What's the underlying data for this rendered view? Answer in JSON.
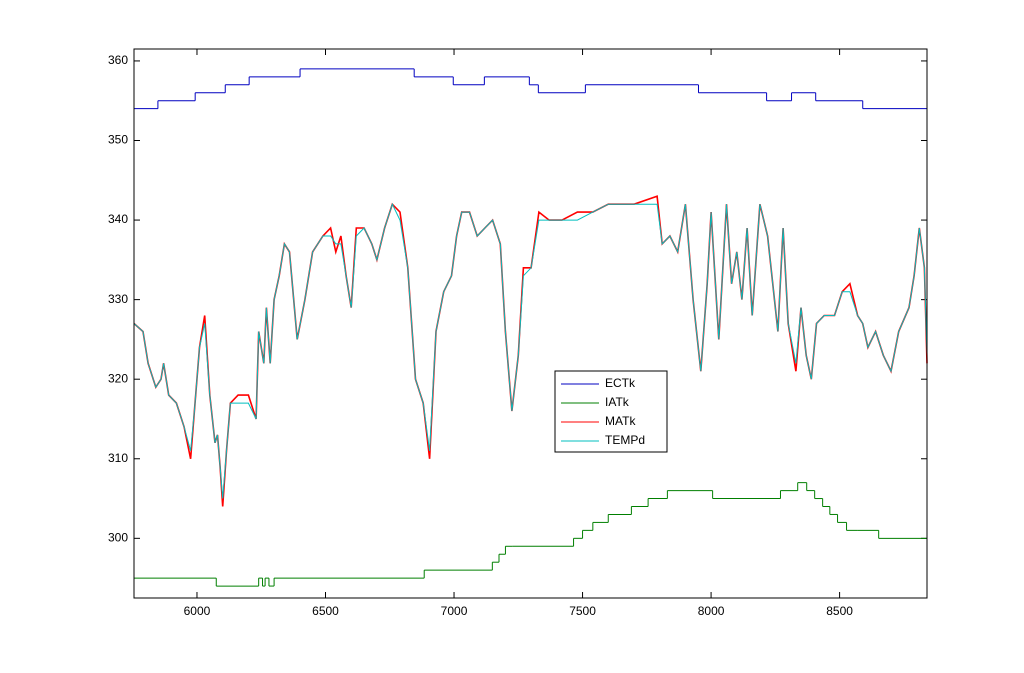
{
  "chart_data": {
    "type": "line",
    "xlim": [
      5755,
      8840
    ],
    "ylim": [
      292.5,
      361.5
    ],
    "xticks": [
      6000,
      6500,
      7000,
      7500,
      8000,
      8500
    ],
    "yticks": [
      300,
      310,
      320,
      330,
      340,
      350,
      360
    ],
    "legend_position": "center",
    "series": [
      {
        "name": "ECTk",
        "color": "#0000c0",
        "drawstyle": "steps-post",
        "x": [
          5755,
          5848,
          5993,
          6110,
          6203,
          6401,
          6845,
          6997,
          7118,
          7293,
          7328,
          7511,
          7951,
          8216,
          8313,
          8407,
          8590
        ],
        "values": [
          354,
          355,
          356,
          357,
          358,
          359,
          358,
          357,
          358,
          357,
          356,
          357,
          356,
          355,
          356,
          355,
          354
        ]
      },
      {
        "name": "IATk",
        "color": "#007f00",
        "drawstyle": "steps-post",
        "x": [
          5755,
          6075,
          6240,
          6255,
          6265,
          6280,
          6300,
          6884,
          7149,
          7175,
          7200,
          7227,
          7465,
          7500,
          7540,
          7600,
          7690,
          7755,
          7830,
          8006,
          8270,
          8337,
          8372,
          8403,
          8434,
          8462,
          8492,
          8527,
          8570,
          8652
        ],
        "values": [
          295,
          294,
          295,
          294,
          295,
          294,
          295,
          296,
          297,
          298,
          299,
          299,
          300,
          301,
          302,
          303,
          304,
          305,
          306,
          305,
          306,
          307,
          306,
          305,
          304,
          303,
          302,
          301,
          301,
          300
        ]
      },
      {
        "name": "MATk",
        "color": "#ff0000",
        "drawstyle": "default",
        "x": [
          5755,
          5790,
          5810,
          5840,
          5860,
          5870,
          5890,
          5920,
          5950,
          5975,
          5990,
          6010,
          6030,
          6050,
          6070,
          6080,
          6090,
          6100,
          6115,
          6130,
          6160,
          6200,
          6230,
          6240,
          6260,
          6270,
          6285,
          6300,
          6320,
          6340,
          6360,
          6390,
          6420,
          6450,
          6490,
          6520,
          6540,
          6560,
          6580,
          6600,
          6620,
          6650,
          6680,
          6700,
          6730,
          6760,
          6790,
          6820,
          6850,
          6880,
          6905,
          6930,
          6960,
          6990,
          7010,
          7030,
          7060,
          7090,
          7120,
          7150,
          7180,
          7200,
          7225,
          7250,
          7270,
          7300,
          7330,
          7370,
          7420,
          7480,
          7540,
          7600,
          7700,
          7790,
          7810,
          7840,
          7870,
          7900,
          7930,
          7960,
          7985,
          8000,
          8030,
          8060,
          8080,
          8100,
          8120,
          8140,
          8160,
          8190,
          8220,
          8260,
          8280,
          8300,
          8330,
          8350,
          8370,
          8390,
          8410,
          8440,
          8480,
          8510,
          8540,
          8570,
          8590,
          8610,
          8640,
          8670,
          8700,
          8730,
          8770,
          8790,
          8810,
          8830,
          8840
        ],
        "values": [
          327,
          326,
          322,
          319,
          320,
          322,
          318,
          317,
          314,
          310,
          316,
          324,
          328,
          318,
          312,
          313,
          309,
          304,
          311,
          317,
          318,
          318,
          315,
          326,
          322,
          329,
          322,
          330,
          333,
          337,
          336,
          325,
          330,
          336,
          338,
          339,
          336,
          338,
          333,
          329,
          339,
          339,
          337,
          335,
          339,
          342,
          341,
          334,
          320,
          317,
          310,
          326,
          331,
          333,
          338,
          341,
          341,
          338,
          339,
          340,
          337,
          326,
          316,
          323,
          334,
          334,
          341,
          340,
          340,
          341,
          341,
          342,
          342,
          343,
          337,
          338,
          336,
          342,
          330,
          321,
          332,
          341,
          325,
          342,
          332,
          336,
          330,
          339,
          328,
          342,
          338,
          326,
          339,
          327,
          321,
          329,
          323,
          320,
          327,
          328,
          328,
          331,
          332,
          328,
          327,
          324,
          326,
          323,
          321,
          326,
          329,
          333,
          339,
          334,
          322
        ]
      },
      {
        "name": "TEMPd",
        "color": "#00bfbf",
        "drawstyle": "default",
        "x": [
          5755,
          5790,
          5810,
          5840,
          5860,
          5870,
          5890,
          5920,
          5950,
          5975,
          5990,
          6010,
          6030,
          6050,
          6070,
          6080,
          6090,
          6100,
          6115,
          6130,
          6160,
          6200,
          6230,
          6240,
          6260,
          6270,
          6285,
          6300,
          6320,
          6340,
          6360,
          6390,
          6420,
          6450,
          6490,
          6520,
          6540,
          6560,
          6580,
          6600,
          6620,
          6650,
          6680,
          6700,
          6730,
          6760,
          6790,
          6820,
          6850,
          6880,
          6905,
          6930,
          6960,
          6990,
          7010,
          7030,
          7060,
          7090,
          7120,
          7150,
          7180,
          7200,
          7225,
          7250,
          7270,
          7300,
          7330,
          7370,
          7420,
          7480,
          7540,
          7600,
          7700,
          7790,
          7810,
          7840,
          7870,
          7900,
          7930,
          7960,
          7985,
          8000,
          8030,
          8060,
          8080,
          8100,
          8120,
          8140,
          8160,
          8190,
          8220,
          8260,
          8280,
          8300,
          8330,
          8350,
          8370,
          8390,
          8410,
          8440,
          8480,
          8510,
          8540,
          8570,
          8590,
          8610,
          8640,
          8670,
          8700,
          8730,
          8770,
          8790,
          8810,
          8830,
          8840
        ],
        "values": [
          327,
          326,
          322,
          319,
          320,
          322,
          318,
          317,
          314,
          311,
          316,
          324,
          327,
          318,
          312,
          313,
          309,
          305,
          311,
          317,
          317,
          317,
          315,
          326,
          322,
          329,
          322,
          330,
          333,
          337,
          336,
          325,
          330,
          336,
          338,
          338,
          337,
          337,
          333,
          329,
          338,
          339,
          337,
          335,
          339,
          342,
          340,
          334,
          320,
          317,
          311,
          326,
          331,
          333,
          338,
          341,
          341,
          338,
          339,
          340,
          337,
          326,
          316,
          323,
          333,
          334,
          340,
          340,
          340,
          340,
          341,
          342,
          342,
          342,
          337,
          338,
          336,
          342,
          330,
          321,
          332,
          341,
          325,
          342,
          332,
          336,
          330,
          339,
          328,
          342,
          338,
          326,
          339,
          327,
          322,
          329,
          323,
          320,
          327,
          328,
          328,
          331,
          331,
          328,
          327,
          324,
          326,
          323,
          321,
          326,
          329,
          333,
          339,
          334,
          323
        ]
      }
    ]
  }
}
